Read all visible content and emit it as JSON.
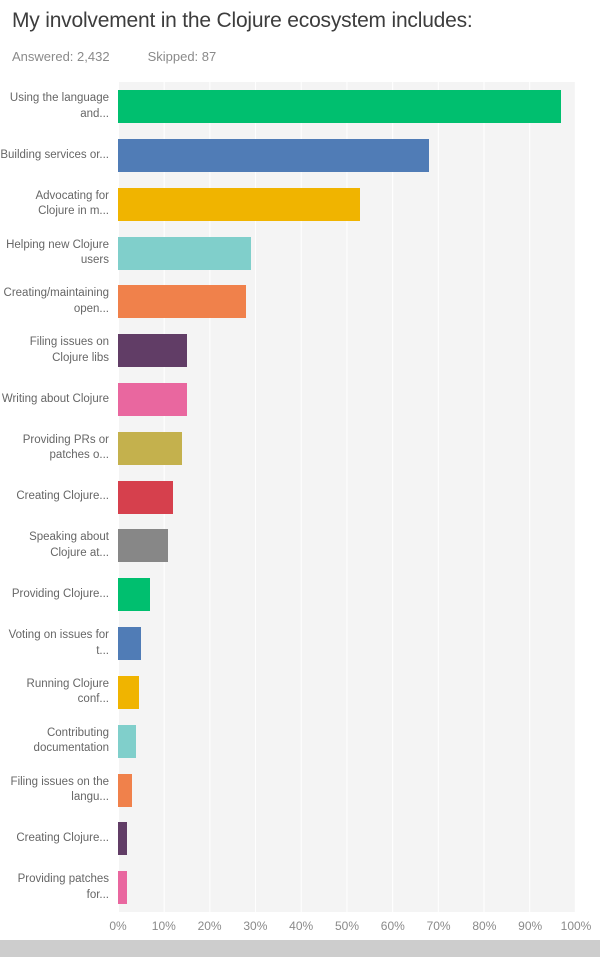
{
  "header": {
    "title": "My involvement in the Clojure ecosystem includes:",
    "answered_label": "Answered: 2,432",
    "skipped_label": "Skipped: 87"
  },
  "chart_data": {
    "type": "bar",
    "orientation": "horizontal",
    "title": "My involvement in the Clojure ecosystem includes:",
    "answered": 2432,
    "skipped": 87,
    "categories": [
      "Using the language and...",
      "Building services or...",
      "Advocating for Clojure in m...",
      "Helping new Clojure users",
      "Creating/maintaining open...",
      "Filing issues on Clojure libs",
      "Writing about Clojure",
      "Providing PRs or patches o...",
      "Creating Clojure...",
      "Speaking about Clojure at...",
      "Providing Clojure...",
      "Voting on issues for t...",
      "Running Clojure conf...",
      "Contributing documentation",
      "Filing issues on the langu...",
      "Creating Clojure...",
      "Providing patches for..."
    ],
    "values": [
      97,
      68,
      53,
      29,
      28,
      15,
      15,
      14,
      12,
      11,
      7,
      5,
      4.5,
      4,
      3,
      2,
      2
    ],
    "colors": [
      "#00BF6F",
      "#507CB6",
      "#F0B400",
      "#80CFCB",
      "#F0814B",
      "#613D66",
      "#E9679F",
      "#C4B14D",
      "#D6404D",
      "#878787",
      "#00BF6F",
      "#507CB6",
      "#F0B400",
      "#80CFCB",
      "#F0814B",
      "#613D66",
      "#E9679F"
    ],
    "x_ticks": [
      "0%",
      "10%",
      "20%",
      "30%",
      "40%",
      "50%",
      "60%",
      "70%",
      "80%",
      "90%",
      "100%"
    ],
    "xlim": [
      0,
      100
    ],
    "grid": "vertical-white-on-light-gray",
    "legend": "none",
    "plot_background": "#f4f4f4"
  }
}
